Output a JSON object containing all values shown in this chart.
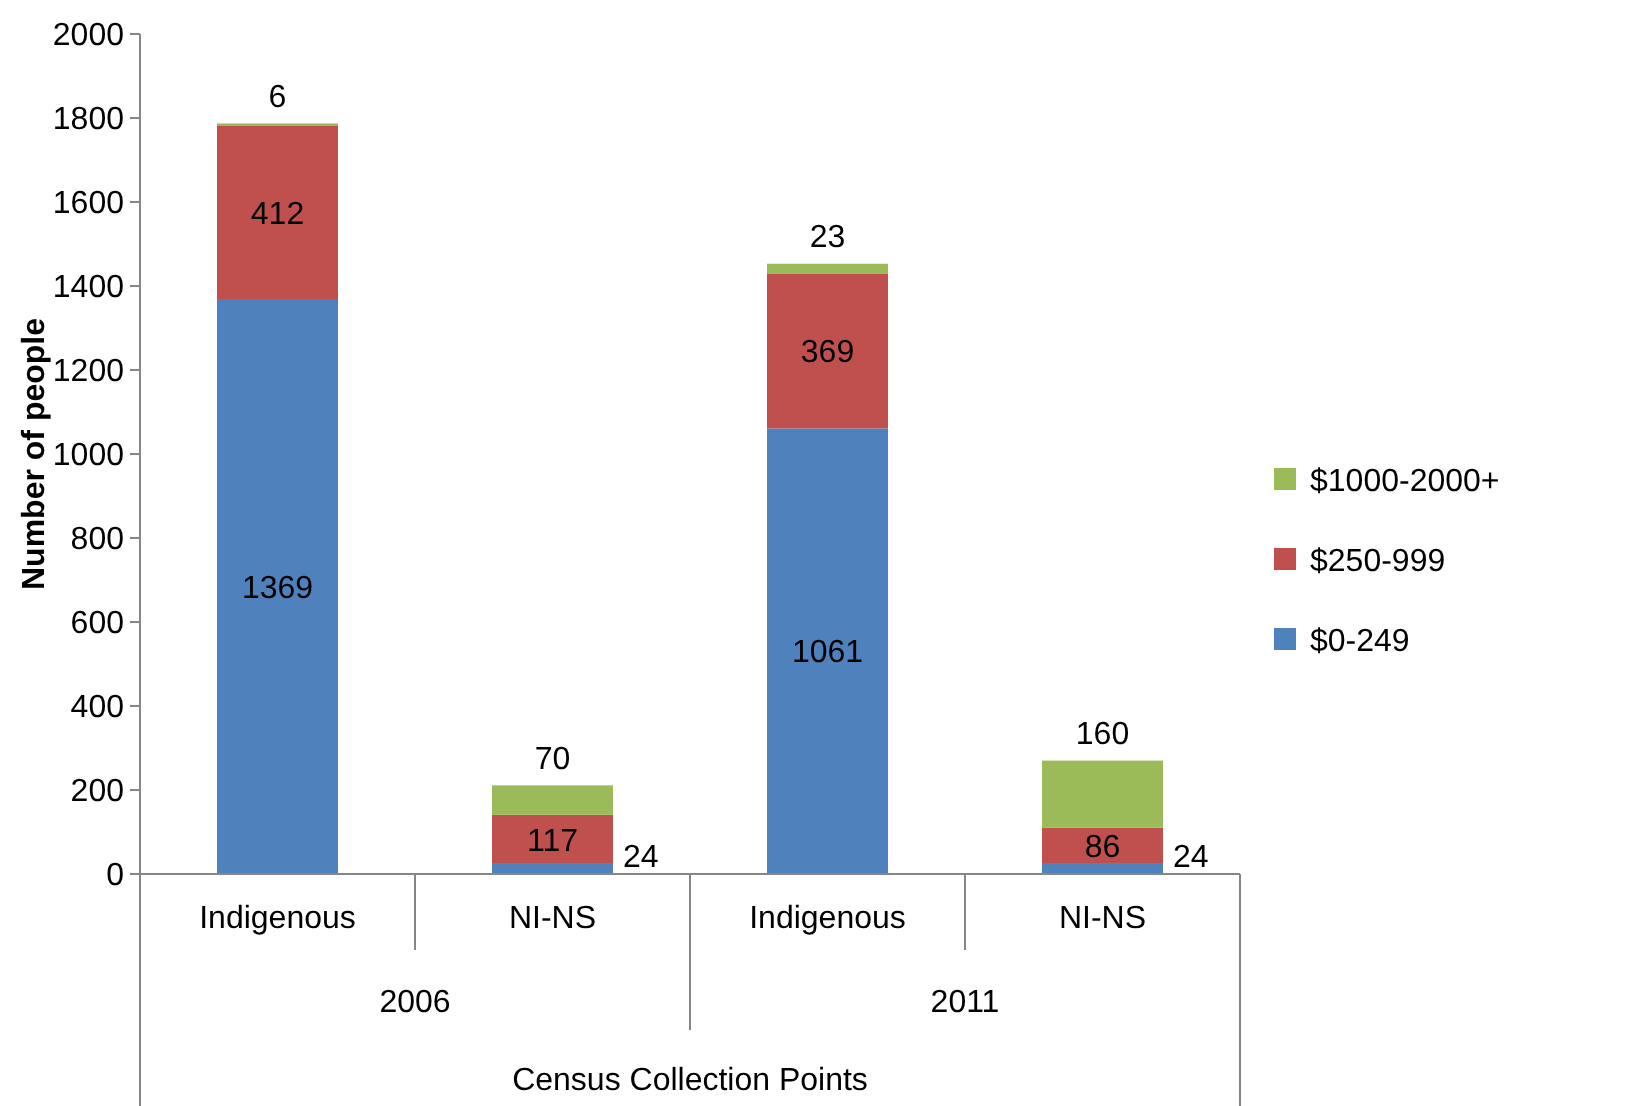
{
  "chart_data": {
    "type": "bar",
    "stacked": true,
    "xlabel": "Census Collection Points",
    "ylabel": "Number of people",
    "categories": [
      "Indigenous",
      "NI-NS",
      "Indigenous",
      "NI-NS"
    ],
    "annotations": [
      "2006",
      "2011"
    ],
    "series": [
      {
        "name": "$0-249",
        "color": "#4f81bd",
        "values": [
          1369,
          24,
          1061,
          24
        ]
      },
      {
        "name": "$250-999",
        "color": "#c0504d",
        "values": [
          412,
          117,
          369,
          86
        ]
      },
      {
        "name": "$1000-2000+",
        "color": "#9bbb59",
        "values": [
          6,
          70,
          23,
          160
        ]
      }
    ],
    "ylim": [
      0,
      2000
    ],
    "yticks": [
      0,
      200,
      400,
      600,
      800,
      1000,
      1200,
      1400,
      1600,
      1800,
      2000
    ],
    "data_labels": true,
    "legend": "right",
    "grid": false
  }
}
